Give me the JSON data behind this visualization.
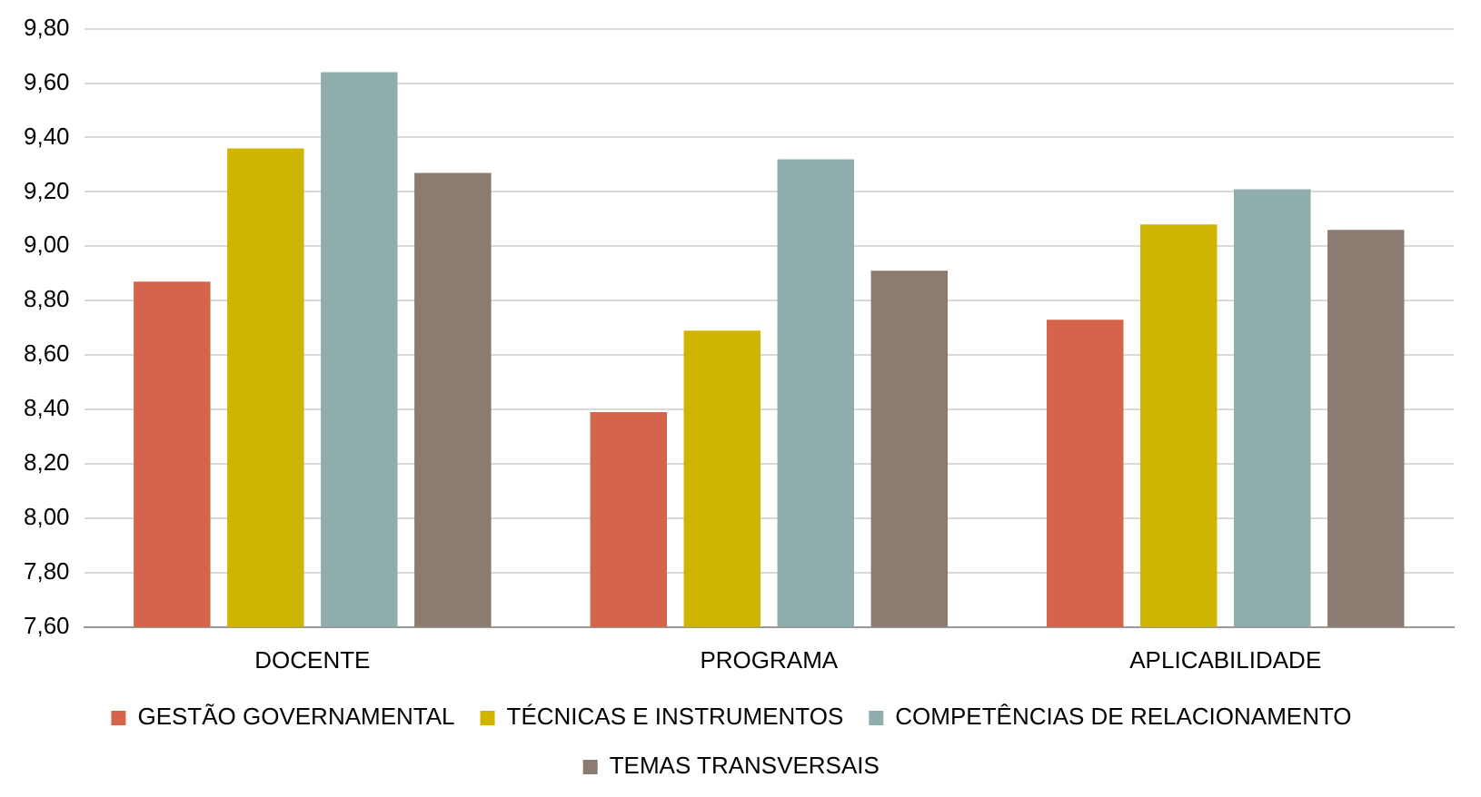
{
  "chart_data": {
    "type": "bar",
    "categories": [
      "DOCENTE",
      "PROGRAMA",
      "APLICABILIDADE"
    ],
    "series": [
      {
        "name": "GESTÃO GOVERNAMENTAL",
        "color": "#d4644a",
        "values": [
          8.87,
          8.39,
          8.73
        ]
      },
      {
        "name": "TÉCNICAS E INSTRUMENTOS",
        "color": "#cfb500",
        "values": [
          9.36,
          8.69,
          9.08
        ]
      },
      {
        "name": "COMPETÊNCIAS DE RELACIONAMENTO",
        "color": "#8eadac",
        "values": [
          9.64,
          9.32,
          9.21
        ]
      },
      {
        "name": "TEMAS TRANSVERSAIS",
        "color": "#8c7b70",
        "values": [
          9.27,
          8.91,
          9.06
        ]
      }
    ],
    "ylim": [
      7.6,
      9.8
    ],
    "yticks": [
      {
        "value": 7.6,
        "label": "7,60"
      },
      {
        "value": 7.8,
        "label": "7,80"
      },
      {
        "value": 8.0,
        "label": "8,00"
      },
      {
        "value": 8.2,
        "label": "8,20"
      },
      {
        "value": 8.4,
        "label": "8,40"
      },
      {
        "value": 8.6,
        "label": "8,60"
      },
      {
        "value": 8.8,
        "label": "8,80"
      },
      {
        "value": 9.0,
        "label": "9,00"
      },
      {
        "value": 9.2,
        "label": "9,20"
      },
      {
        "value": 9.4,
        "label": "9,40"
      },
      {
        "value": 9.6,
        "label": "9,60"
      },
      {
        "value": 9.8,
        "label": "9,80"
      }
    ],
    "grid": "y",
    "legend": "bottom"
  }
}
